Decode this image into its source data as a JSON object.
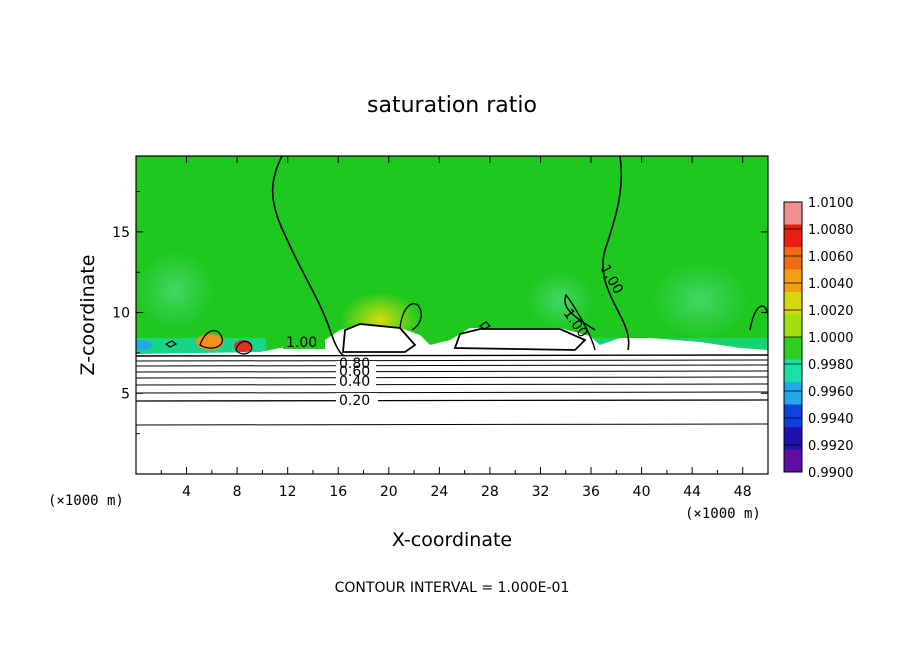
{
  "chart_data": {
    "type": "heatmap",
    "title": "saturation ratio",
    "xlabel": "X-coordinate",
    "ylabel": "Z-coordinate",
    "x_unit": "(×1000 m)",
    "y_unit": "(×1000 m)",
    "xlim": [
      0,
      50
    ],
    "ylim": [
      0,
      19.7
    ],
    "x_ticks": [
      "4",
      "8",
      "12",
      "16",
      "20",
      "24",
      "28",
      "32",
      "36",
      "40",
      "44",
      "48"
    ],
    "y_ticks": [
      "5",
      "10",
      "15"
    ],
    "colorbar": {
      "min": 0.99,
      "max": 1.01,
      "labels": [
        "1.0100",
        "1.0080",
        "1.0060",
        "1.0040",
        "1.0020",
        "1.0000",
        "0.9980",
        "0.9960",
        "0.9940",
        "0.9920",
        "0.9900"
      ],
      "colors": [
        "#f09090",
        "#e81e10",
        "#f06c10",
        "#f0a010",
        "#d8d810",
        "#a0e010",
        "#2ecf1e",
        "#18e0a8",
        "#20a8e8",
        "#1040e0",
        "#2010b0",
        "#6010a0"
      ]
    },
    "contour_labels": [
      "1.00",
      "1.00",
      "1.00",
      "0.80",
      "0.60",
      "0.40",
      "0.20"
    ],
    "contour_interval_text": "CONTOUR INTERVAL = 1.000E-01",
    "background_color": "#1ec81e",
    "subsaturated_color": "#ffffff"
  }
}
